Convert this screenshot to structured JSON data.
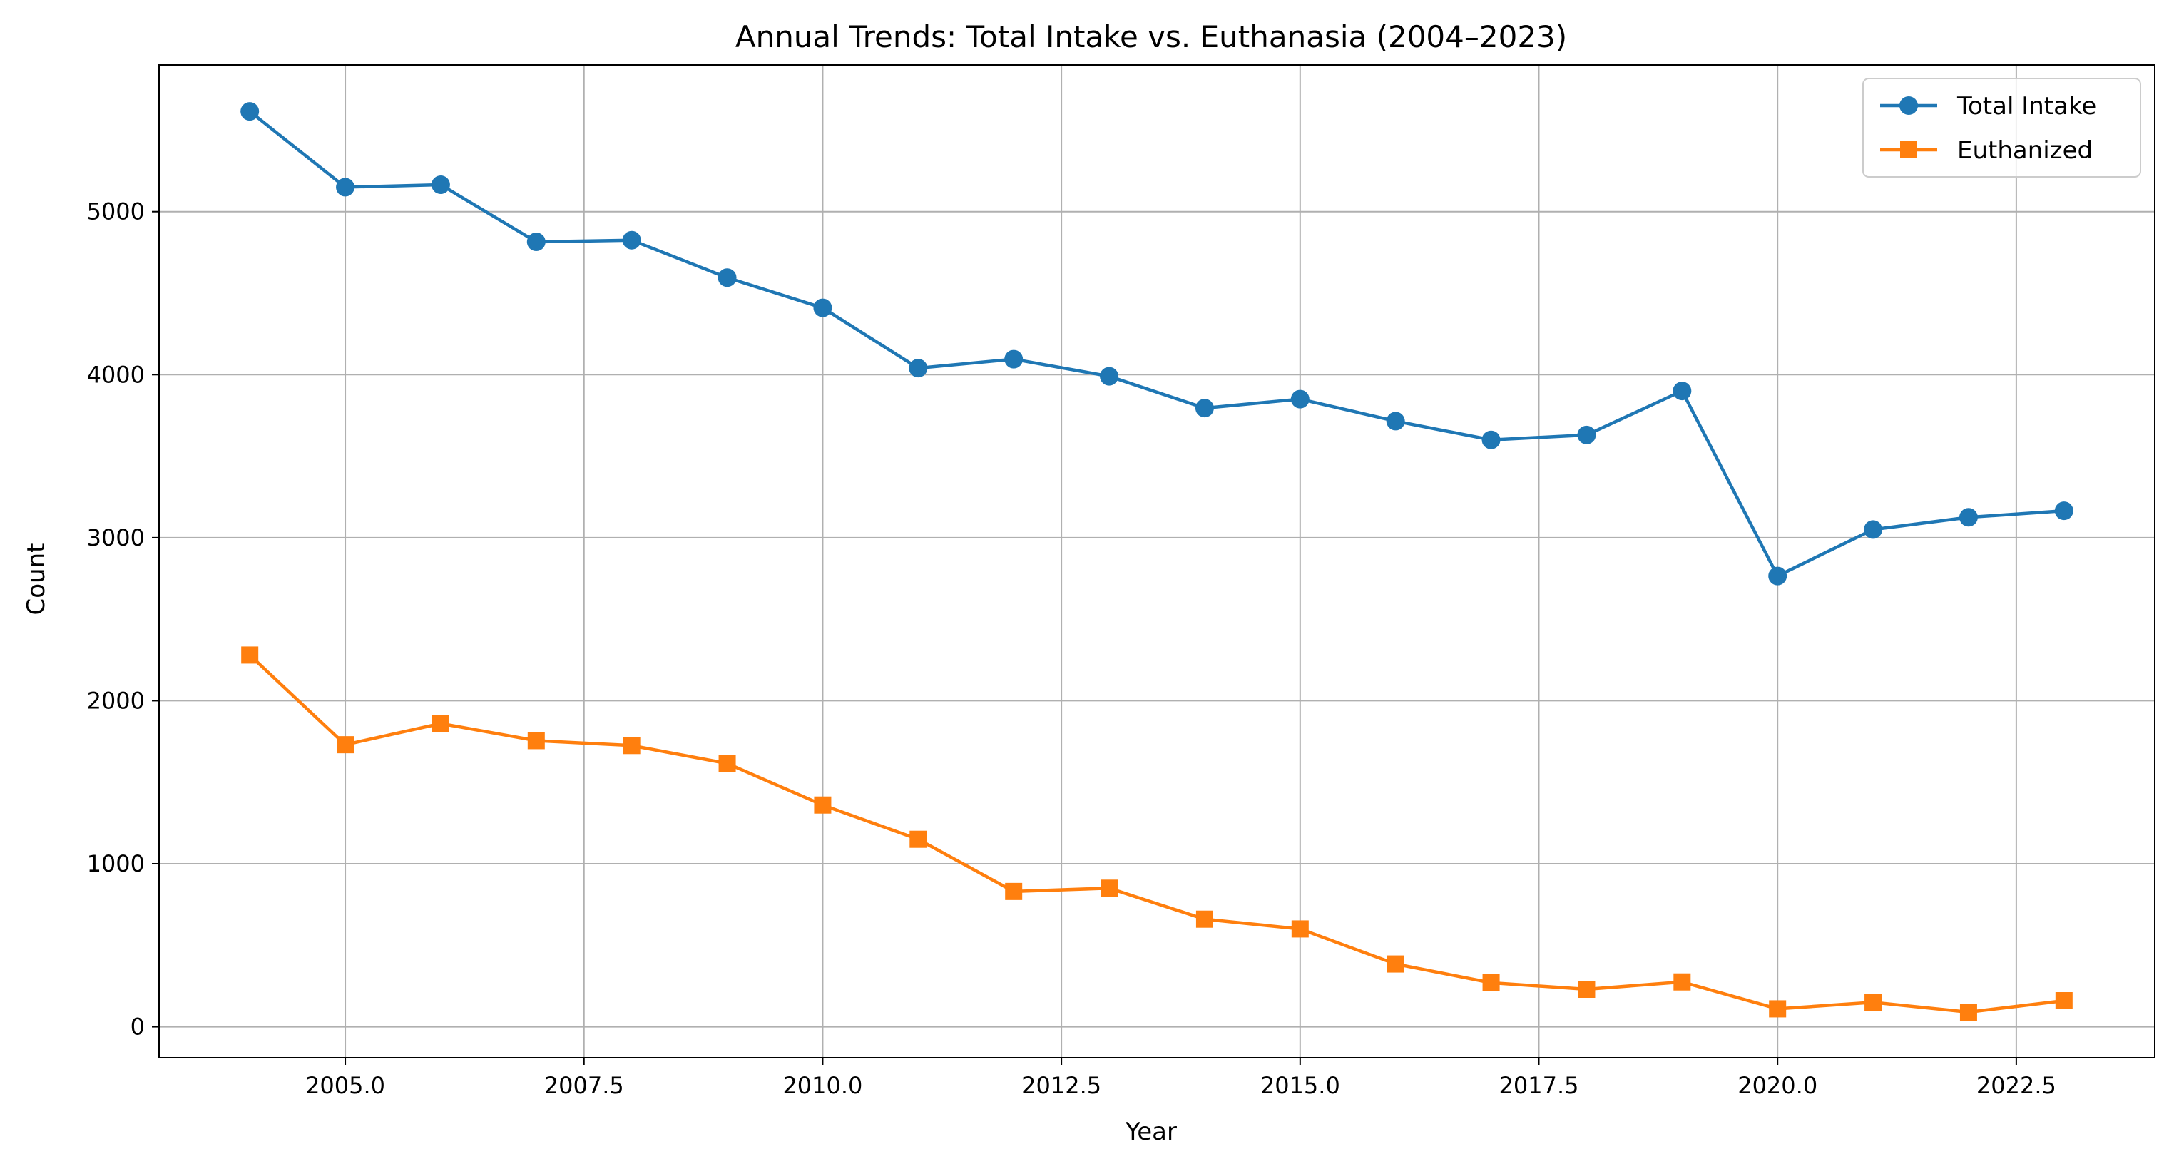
{
  "chart_data": {
    "type": "line",
    "title": "Annual Trends: Total Intake vs. Euthanasia (2004–2023)",
    "xlabel": "Year",
    "ylabel": "Count",
    "xlim": [
      2003.05,
      2023.95
    ],
    "ylim": [
      -190,
      5900
    ],
    "x_ticks": [
      2005.0,
      2007.5,
      2010.0,
      2012.5,
      2015.0,
      2017.5,
      2020.0,
      2022.5
    ],
    "x_tick_labels": [
      "2005.0",
      "2007.5",
      "2010.0",
      "2012.5",
      "2015.0",
      "2017.5",
      "2020.0",
      "2022.5"
    ],
    "y_ticks": [
      0,
      1000,
      2000,
      3000,
      4000,
      5000
    ],
    "y_tick_labels": [
      "0",
      "1000",
      "2000",
      "3000",
      "4000",
      "5000"
    ],
    "grid": true,
    "legend_position": "top-right",
    "x": [
      2004,
      2005,
      2006,
      2007,
      2008,
      2009,
      2010,
      2011,
      2012,
      2013,
      2014,
      2015,
      2016,
      2017,
      2018,
      2019,
      2020,
      2021,
      2022,
      2023
    ],
    "series": [
      {
        "name": "Total Intake",
        "color": "#1f77b4",
        "marker": "circle",
        "values": [
          5615,
          5150,
          5165,
          4815,
          4825,
          4595,
          4410,
          4040,
          4095,
          3990,
          3795,
          3850,
          3715,
          3600,
          3630,
          3900,
          2765,
          3050,
          3125,
          3165
        ]
      },
      {
        "name": "Euthanized",
        "color": "#ff7f0e",
        "marker": "square",
        "values": [
          2280,
          1730,
          1860,
          1755,
          1725,
          1615,
          1360,
          1150,
          830,
          850,
          660,
          600,
          385,
          270,
          230,
          275,
          110,
          150,
          90,
          160
        ]
      }
    ]
  }
}
